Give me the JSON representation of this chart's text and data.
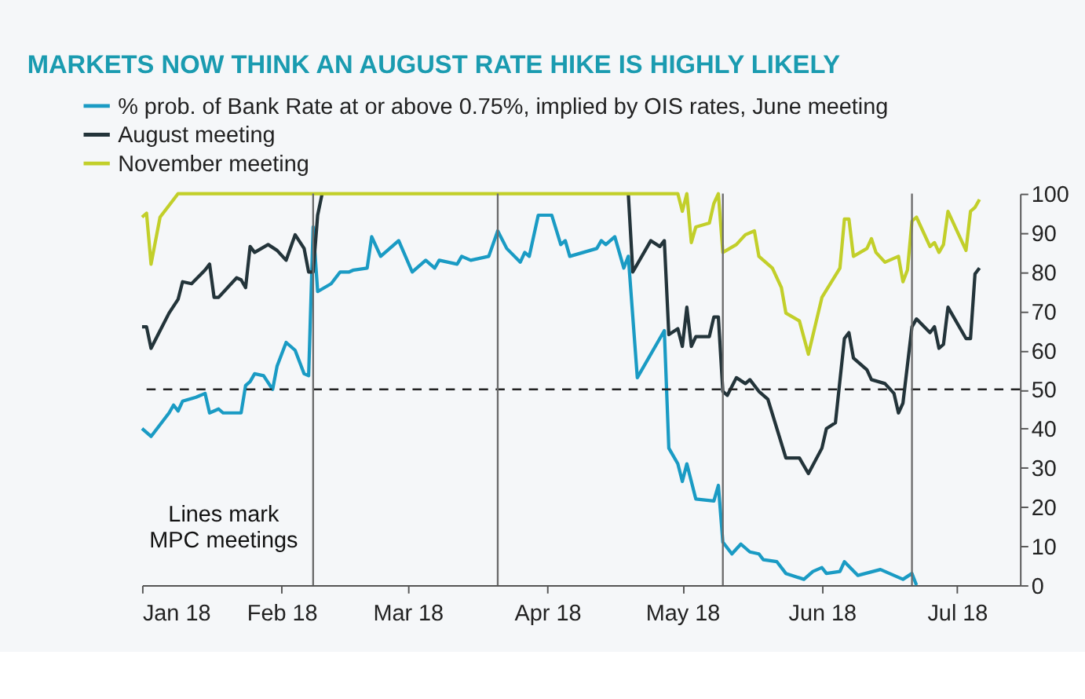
{
  "chart_data": {
    "type": "line",
    "title": "MARKETS NOW THINK AN AUGUST RATE HIKE IS HIGHLY LIKELY",
    "annotations": [
      "Lines mark\nMPC meetings"
    ],
    "series": [
      {
        "name": "% prob. of Bank Rate at or above 0.75%, implied by OIS rates, June meeting",
        "color": "#1a9bc4",
        "x": [
          "2018-01-01",
          "2018-01-03",
          "2018-01-07",
          "2018-01-08",
          "2018-01-09",
          "2018-01-10",
          "2018-01-13",
          "2018-01-15",
          "2018-01-16",
          "2018-01-18",
          "2018-01-19",
          "2018-01-23",
          "2018-01-24",
          "2018-01-25",
          "2018-01-26",
          "2018-01-28",
          "2018-01-30",
          "2018-01-31",
          "2018-02-02",
          "2018-02-04",
          "2018-02-06",
          "2018-02-07",
          "2018-02-08",
          "2018-02-09",
          "2018-02-12",
          "2018-02-14",
          "2018-02-16",
          "2018-02-17",
          "2018-02-20",
          "2018-02-21",
          "2018-02-23",
          "2018-02-27",
          "2018-03-02",
          "2018-03-05",
          "2018-03-07",
          "2018-03-08",
          "2018-03-12",
          "2018-03-13",
          "2018-03-15",
          "2018-03-19",
          "2018-03-21",
          "2018-03-23",
          "2018-03-26",
          "2018-03-27",
          "2018-03-28",
          "2018-03-30",
          "2018-04-02",
          "2018-04-04",
          "2018-04-05",
          "2018-04-06",
          "2018-04-09",
          "2018-04-12",
          "2018-04-13",
          "2018-04-14",
          "2018-04-16",
          "2018-04-18",
          "2018-04-19",
          "2018-04-21",
          "2018-04-27",
          "2018-04-28",
          "2018-04-30",
          "2018-05-01",
          "2018-05-02",
          "2018-05-04",
          "2018-05-08",
          "2018-05-09",
          "2018-05-10",
          "2018-05-12",
          "2018-05-14",
          "2018-05-16",
          "2018-05-18",
          "2018-05-19",
          "2018-05-22",
          "2018-05-24",
          "2018-05-28",
          "2018-05-30",
          "2018-06-01",
          "2018-06-02",
          "2018-06-05",
          "2018-06-06",
          "2018-06-09",
          "2018-06-14",
          "2018-06-19",
          "2018-06-21",
          "2018-06-22"
        ],
        "values": [
          40,
          38,
          44,
          46,
          44.5,
          47,
          48,
          49,
          44,
          45,
          44,
          44,
          51,
          52,
          54,
          53.5,
          50,
          56,
          62,
          60,
          54,
          53.5,
          91.5,
          75,
          77,
          80,
          80,
          80.5,
          81,
          89,
          84,
          88,
          80,
          83,
          81,
          83,
          82,
          84,
          83,
          84,
          90.5,
          86,
          82.5,
          85,
          84,
          94.5,
          94.5,
          87,
          88,
          84,
          85,
          86,
          88,
          87,
          89,
          81,
          84,
          53,
          65,
          35,
          31,
          26.5,
          31,
          22,
          21.5,
          25.5,
          11,
          8,
          10.5,
          8.5,
          8,
          6.5,
          6,
          3,
          1.5,
          3.5,
          4.5,
          3,
          3.5,
          6,
          2.5,
          4,
          1.5,
          3,
          0
        ]
      },
      {
        "name": "August meeting",
        "color": "#23343a",
        "x": [
          "2018-01-01",
          "2018-01-02",
          "2018-01-03",
          "2018-01-05",
          "2018-01-07",
          "2018-01-09",
          "2018-01-10",
          "2018-01-12",
          "2018-01-15",
          "2018-01-16",
          "2018-01-17",
          "2018-01-18",
          "2018-01-22",
          "2018-01-23",
          "2018-01-24",
          "2018-01-25",
          "2018-01-26",
          "2018-01-29",
          "2018-01-31",
          "2018-02-02",
          "2018-02-04",
          "2018-02-06",
          "2018-02-07",
          "2018-02-08",
          "2018-02-09",
          "2018-02-10",
          "2018-04-18",
          "2018-04-19",
          "2018-04-20",
          "2018-04-24",
          "2018-04-26",
          "2018-04-27",
          "2018-04-28",
          "2018-04-30",
          "2018-05-01",
          "2018-05-02",
          "2018-05-03",
          "2018-05-04",
          "2018-05-07",
          "2018-05-08",
          "2018-05-09",
          "2018-05-10",
          "2018-05-11",
          "2018-05-13",
          "2018-05-15",
          "2018-05-16",
          "2018-05-18",
          "2018-05-20",
          "2018-05-24",
          "2018-05-27",
          "2018-05-29",
          "2018-06-01",
          "2018-06-02",
          "2018-06-04",
          "2018-06-06",
          "2018-06-07",
          "2018-06-08",
          "2018-06-11",
          "2018-06-12",
          "2018-06-15",
          "2018-06-17",
          "2018-06-18",
          "2018-06-19",
          "2018-06-21",
          "2018-06-22",
          "2018-06-25",
          "2018-06-26",
          "2018-06-27",
          "2018-06-28",
          "2018-06-29",
          "2018-07-03",
          "2018-07-04",
          "2018-07-05",
          "2018-07-06"
        ],
        "values": [
          66,
          66,
          60.5,
          65,
          69.5,
          73,
          77.5,
          77,
          80.5,
          82,
          73.5,
          73.5,
          78.5,
          78,
          76,
          86.5,
          85,
          87,
          85.5,
          83,
          89.5,
          86,
          80,
          80,
          94.5,
          100,
          null,
          100,
          80,
          88,
          86.5,
          88,
          64,
          65.5,
          61,
          71,
          61,
          63.5,
          63.5,
          68.5,
          68.5,
          49.5,
          48.5,
          53,
          51.5,
          52.5,
          49.5,
          47.5,
          32.5,
          32.5,
          28.5,
          35,
          40,
          41.5,
          63,
          64.5,
          58,
          55,
          52.5,
          51.5,
          49,
          44,
          46.5,
          66,
          68,
          64.5,
          66,
          60.5,
          61.5,
          71,
          63,
          63,
          79.5,
          81
        ]
      },
      {
        "name": "November meeting",
        "color": "#c2cf2a",
        "x": [
          "2018-01-01",
          "2018-01-02",
          "2018-01-03",
          "2018-01-05",
          "2018-01-09",
          "2018-04-30",
          "2018-05-01",
          "2018-05-02",
          "2018-05-03",
          "2018-05-04",
          "2018-05-07",
          "2018-05-08",
          "2018-05-09",
          "2018-05-10",
          "2018-05-13",
          "2018-05-15",
          "2018-05-17",
          "2018-05-18",
          "2018-05-21",
          "2018-05-23",
          "2018-05-24",
          "2018-05-27",
          "2018-05-29",
          "2018-06-01",
          "2018-06-05",
          "2018-06-06",
          "2018-06-07",
          "2018-06-08",
          "2018-06-11",
          "2018-06-12",
          "2018-06-13",
          "2018-06-15",
          "2018-06-18",
          "2018-06-19",
          "2018-06-20",
          "2018-06-21",
          "2018-06-22",
          "2018-06-25",
          "2018-06-26",
          "2018-06-27",
          "2018-06-28",
          "2018-06-29",
          "2018-07-03",
          "2018-07-04",
          "2018-07-05",
          "2018-07-06"
        ],
        "values": [
          94,
          95,
          82,
          94,
          100,
          100,
          95.5,
          100,
          87.5,
          91.5,
          92.5,
          97.5,
          100,
          85,
          87,
          89.5,
          90.5,
          84,
          81,
          76,
          69.5,
          67.5,
          59,
          73.5,
          81,
          93.5,
          93.5,
          84,
          86,
          88.5,
          85,
          82.5,
          84,
          77.5,
          80.5,
          93,
          94,
          86.5,
          87.5,
          85,
          87,
          95.5,
          85.5,
          95.5,
          96.5,
          98.5
        ]
      }
    ],
    "xlim": [
      "2018-01-01",
      "2018-07-15"
    ],
    "xticks": [
      {
        "value": "2018-01-01",
        "label": "Jan 18"
      },
      {
        "value": "2018-02-01",
        "label": "Feb 18"
      },
      {
        "value": "2018-03-01",
        "label": "Mar 18"
      },
      {
        "value": "2018-04-01",
        "label": "Apr 18"
      },
      {
        "value": "2018-05-01",
        "label": "May 18"
      },
      {
        "value": "2018-06-01",
        "label": "Jun 18"
      },
      {
        "value": "2018-07-01",
        "label": "Jul 18"
      }
    ],
    "ylim": [
      0,
      100
    ],
    "yticks": [
      0,
      10,
      20,
      30,
      40,
      50,
      60,
      70,
      80,
      90,
      100
    ],
    "ref_lines": [
      {
        "axis": "y",
        "value": 50,
        "color": "#222222",
        "line_style": "dashed"
      },
      {
        "axis": "x",
        "value": "2018-02-08",
        "color": "#6b6b6b",
        "line_style": "solid"
      },
      {
        "axis": "x",
        "value": "2018-03-21",
        "color": "#6b6b6b",
        "line_style": "solid"
      },
      {
        "axis": "x",
        "value": "2018-05-10",
        "color": "#6b6b6b",
        "line_style": "solid"
      },
      {
        "axis": "x",
        "value": "2018-06-21",
        "color": "#6b6b6b",
        "line_style": "solid"
      }
    ],
    "legend": "top left",
    "grid": false,
    "line_style": "solid",
    "marker": "none"
  }
}
